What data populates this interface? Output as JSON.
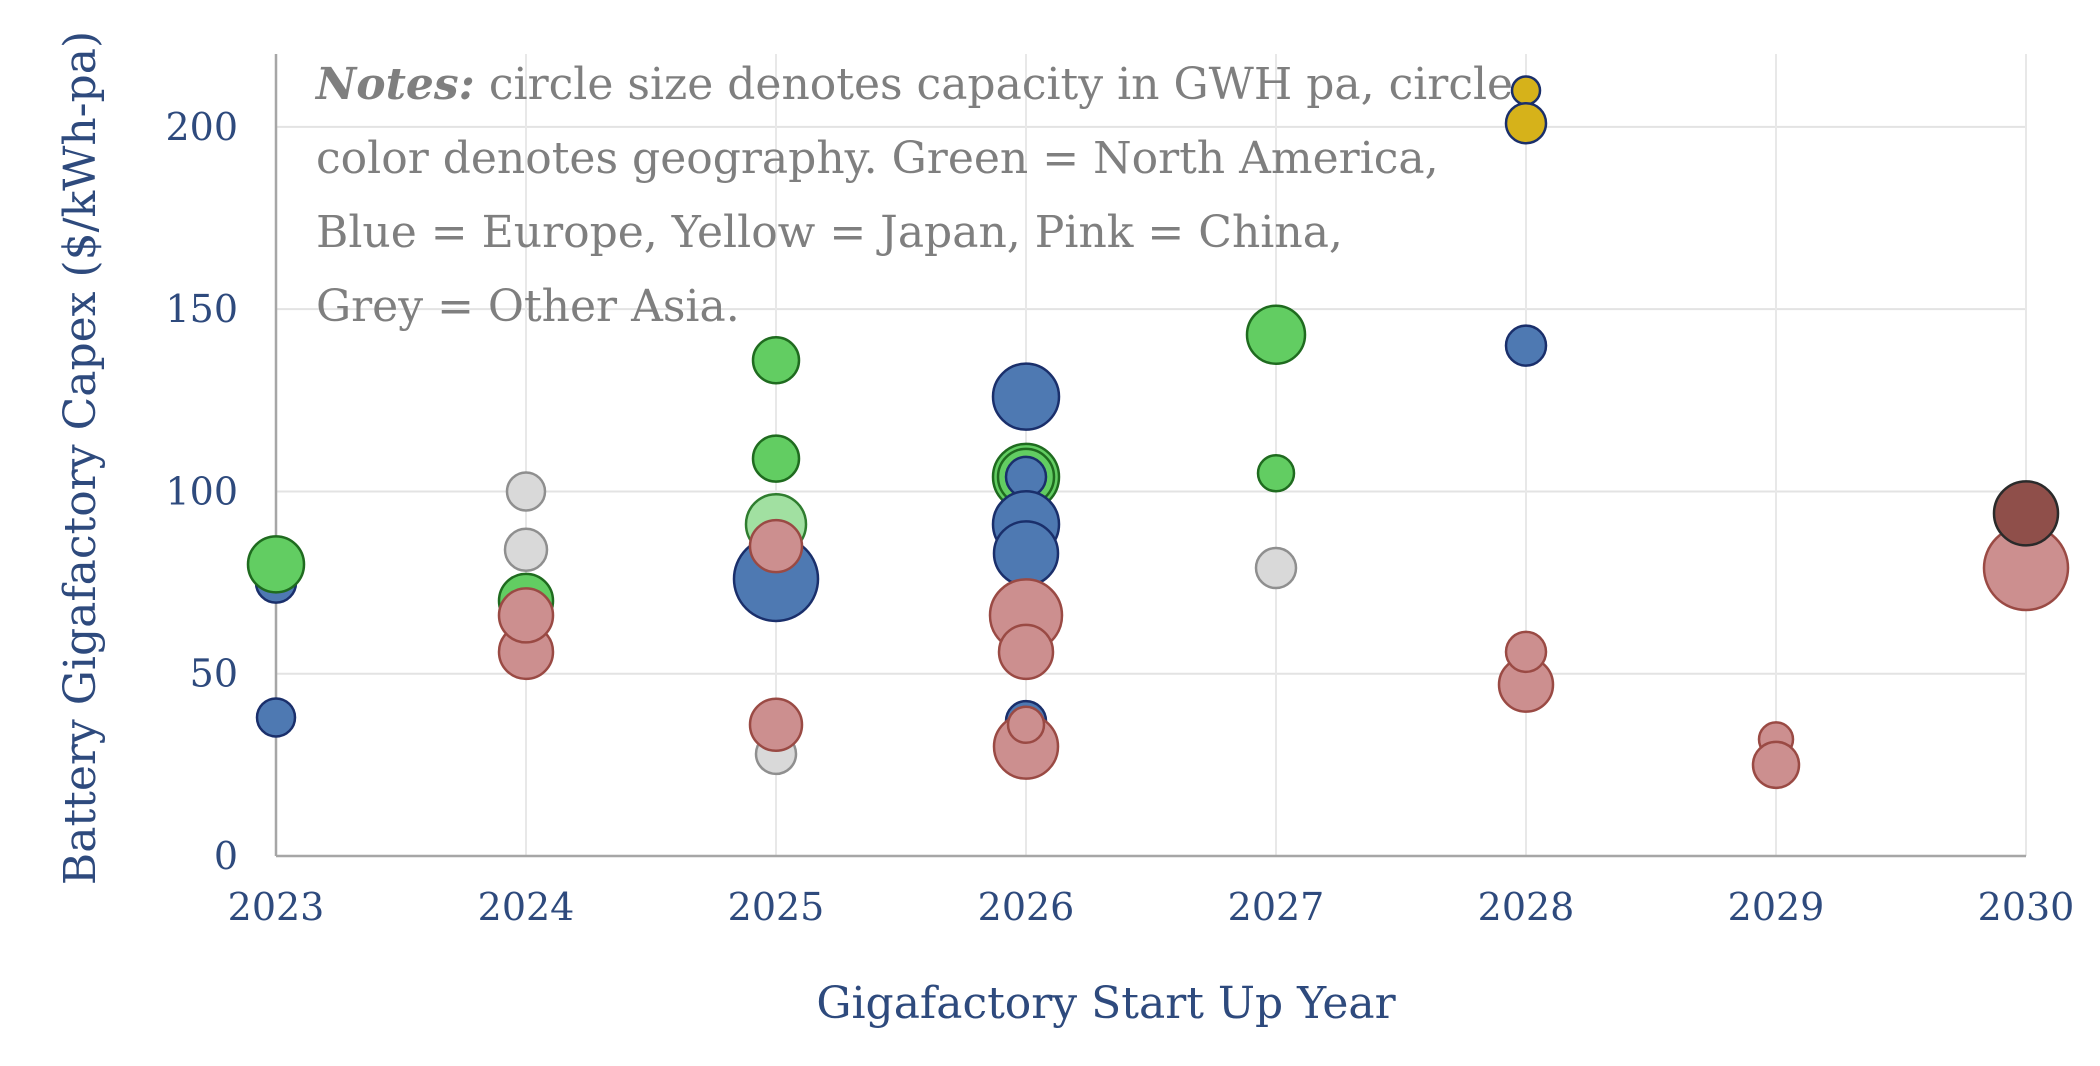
{
  "chart_data": {
    "type": "scatter",
    "subtype": "bubble",
    "xlabel": "Gigafactory Start Up Year",
    "ylabel": "Battery Gigafactory Capex ($/kWh-pa)",
    "xlim": [
      2023,
      2030
    ],
    "ylim": [
      0,
      220
    ],
    "x_ticks": [
      "2023",
      "2024",
      "2025",
      "2026",
      "2027",
      "2028",
      "2029",
      "2030"
    ],
    "y_ticks": [
      "0",
      "50",
      "100",
      "150",
      "200"
    ],
    "grid": true,
    "notes": {
      "label": "Notes:",
      "lines": [
        " circle size denotes capacity in GWH pa, circle",
        "color denotes geography. Green = North America,",
        "Blue = Europe, Yellow = Japan, Pink = China,",
        "Grey = Other Asia."
      ]
    },
    "colors": {
      "north_america": "#62cd62",
      "north_america_light": "#a1e0a1",
      "europe": "#4e79b2",
      "japan": "#d6b21a",
      "china": "#cc8f8f",
      "china_dark": "#8f4f4a",
      "other_asia": "#d9d9d9"
    },
    "points": [
      {
        "x": 2023,
        "y": 75,
        "r": 20,
        "geo": "europe"
      },
      {
        "x": 2023,
        "y": 80,
        "r": 28,
        "geo": "north_america"
      },
      {
        "x": 2023,
        "y": 38,
        "r": 19,
        "geo": "europe"
      },
      {
        "x": 2024,
        "y": 100,
        "r": 19,
        "geo": "other_asia"
      },
      {
        "x": 2024,
        "y": 84,
        "r": 21,
        "geo": "other_asia"
      },
      {
        "x": 2024,
        "y": 70,
        "r": 27,
        "geo": "north_america"
      },
      {
        "x": 2024,
        "y": 56,
        "r": 27,
        "geo": "china"
      },
      {
        "x": 2024,
        "y": 66,
        "r": 27,
        "geo": "china"
      },
      {
        "x": 2025,
        "y": 136,
        "r": 23,
        "geo": "north_america"
      },
      {
        "x": 2025,
        "y": 109,
        "r": 23,
        "geo": "north_america"
      },
      {
        "x": 2025,
        "y": 91,
        "r": 30,
        "geo": "north_america_light"
      },
      {
        "x": 2025,
        "y": 76,
        "r": 42,
        "geo": "europe"
      },
      {
        "x": 2025,
        "y": 85,
        "r": 26,
        "geo": "china"
      },
      {
        "x": 2025,
        "y": 28,
        "r": 20,
        "geo": "other_asia"
      },
      {
        "x": 2025,
        "y": 36,
        "r": 26,
        "geo": "china"
      },
      {
        "x": 2026,
        "y": 126,
        "r": 33,
        "geo": "europe"
      },
      {
        "x": 2026,
        "y": 104,
        "r": 33,
        "geo": "north_america"
      },
      {
        "x": 2026,
        "y": 104,
        "r": 28,
        "geo": "north_america"
      },
      {
        "x": 2026,
        "y": 104,
        "r": 20,
        "geo": "europe"
      },
      {
        "x": 2026,
        "y": 91,
        "r": 33,
        "geo": "europe"
      },
      {
        "x": 2026,
        "y": 83,
        "r": 32,
        "geo": "europe"
      },
      {
        "x": 2026,
        "y": 66,
        "r": 36,
        "geo": "china"
      },
      {
        "x": 2026,
        "y": 56,
        "r": 27,
        "geo": "china"
      },
      {
        "x": 2026,
        "y": 37,
        "r": 20,
        "geo": "europe"
      },
      {
        "x": 2026,
        "y": 30,
        "r": 32,
        "geo": "china"
      },
      {
        "x": 2026,
        "y": 36,
        "r": 18,
        "geo": "china"
      },
      {
        "x": 2027,
        "y": 143,
        "r": 29,
        "geo": "north_america"
      },
      {
        "x": 2027,
        "y": 105,
        "r": 18,
        "geo": "north_america"
      },
      {
        "x": 2027,
        "y": 79,
        "r": 20,
        "geo": "other_asia"
      },
      {
        "x": 2028,
        "y": 210,
        "r": 14,
        "geo": "japan"
      },
      {
        "x": 2028,
        "y": 201,
        "r": 20,
        "geo": "japan"
      },
      {
        "x": 2028,
        "y": 140,
        "r": 20,
        "geo": "europe"
      },
      {
        "x": 2028,
        "y": 47,
        "r": 27,
        "geo": "china"
      },
      {
        "x": 2028,
        "y": 56,
        "r": 20,
        "geo": "china"
      },
      {
        "x": 2029,
        "y": 32,
        "r": 17,
        "geo": "china"
      },
      {
        "x": 2029,
        "y": 25,
        "r": 23,
        "geo": "china"
      },
      {
        "x": 2030,
        "y": 79,
        "r": 42,
        "geo": "china"
      },
      {
        "x": 2030,
        "y": 94,
        "r": 32,
        "geo": "china_dark"
      }
    ]
  }
}
